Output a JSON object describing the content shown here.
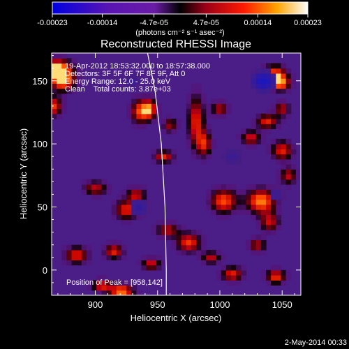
{
  "colorbar": {
    "ticks": [
      "-0.00023",
      "-0.00014",
      "-4.7e-05",
      "4.7e-05",
      "0.00014",
      "0.00023"
    ],
    "tick_values": [
      -0.00023,
      -0.00014,
      -4.7e-05,
      4.7e-05,
      0.00014,
      0.00023
    ],
    "range": [
      -0.00023,
      0.00023
    ],
    "units_text": "(photons cm⁻² s⁻¹ asec⁻²)"
  },
  "plot": {
    "title": "Reconstructed RHESSI Image",
    "annotations": [
      "19-Apr-2012 18:53:32.000 to 18:57:38.000",
      "Detectors: 3F 5F 6F 7F 8F 9F, Att 0",
      "Energy Range: 12.0 - 25.0 keV",
      "Clean    Total counts: 3.87e+03"
    ],
    "peak_text": "Position of Peak = [958,142]",
    "timestamp": "2-May-2014 00:33"
  },
  "chart_data": {
    "type": "heatmap",
    "title": "Reconstructed RHESSI Image",
    "xlabel": "Heliocentric X (arcsec)",
    "ylabel": "Heliocentric Y (arcsec)",
    "xlim": [
      865,
      1065
    ],
    "ylim": [
      -20,
      172
    ],
    "x_ticks": [
      900,
      950,
      1000,
      1050
    ],
    "x_tick_labels": [
      "900",
      "950",
      "1000",
      "1050"
    ],
    "y_ticks": [
      0,
      50,
      100,
      150
    ],
    "y_tick_labels": [
      "0",
      "50",
      "100",
      "150"
    ],
    "peak_position": [
      958,
      142
    ],
    "limb_curve": [
      [
        942,
        172
      ],
      [
        948,
        142
      ],
      [
        953,
        100
      ],
      [
        956,
        50
      ],
      [
        957,
        0
      ],
      [
        957,
        -20
      ]
    ],
    "blobs": [
      [
        869,
        160,
        12,
        8,
        1.0
      ],
      [
        874,
        150,
        10,
        8,
        0.9
      ],
      [
        866,
        130,
        8,
        8,
        0.75
      ],
      [
        921,
        -17,
        10,
        6,
        0.9
      ],
      [
        905,
        -12,
        8,
        5,
        0.7
      ],
      [
        936,
        126,
        8,
        10,
        0.75
      ],
      [
        944,
        128,
        6,
        8,
        0.7
      ],
      [
        981,
        118,
        7,
        22,
        0.7
      ],
      [
        988,
        100,
        6,
        10,
        0.6
      ],
      [
        955,
        90,
        8,
        5,
        0.7
      ],
      [
        1000,
        128,
        7,
        6,
        0.6
      ],
      [
        1044,
        155,
        10,
        8,
        0.8
      ],
      [
        1049,
        148,
        8,
        6,
        0.7
      ],
      [
        1038,
        118,
        9,
        6,
        0.7
      ],
      [
        1050,
        128,
        6,
        6,
        0.6
      ],
      [
        1003,
        55,
        11,
        10,
        0.8
      ],
      [
        1033,
        55,
        12,
        10,
        0.9
      ],
      [
        1040,
        38,
        8,
        8,
        0.6
      ],
      [
        900,
        65,
        10,
        6,
        0.6
      ],
      [
        925,
        48,
        10,
        8,
        0.7
      ],
      [
        933,
        60,
        8,
        6,
        0.6
      ],
      [
        1050,
        95,
        9,
        8,
        0.7
      ],
      [
        1055,
        75,
        7,
        7,
        0.6
      ],
      [
        958,
        32,
        9,
        6,
        0.6
      ],
      [
        975,
        22,
        10,
        8,
        0.75
      ],
      [
        885,
        12,
        10,
        7,
        0.7
      ],
      [
        915,
        15,
        8,
        6,
        0.7
      ],
      [
        945,
        5,
        8,
        5,
        0.65
      ],
      [
        1010,
        -3,
        9,
        6,
        0.7
      ],
      [
        1045,
        -5,
        8,
        6,
        0.75
      ],
      [
        1025,
        105,
        8,
        6,
        0.65
      ],
      [
        993,
        10,
        8,
        5,
        0.6
      ],
      [
        1030,
        20,
        7,
        6,
        0.6
      ],
      [
        960,
        115,
        6,
        6,
        0.55
      ]
    ],
    "dark_blobs": [
      [
        1035,
        150,
        12,
        10,
        0.9
      ],
      [
        935,
        50,
        10,
        10,
        0.6
      ],
      [
        1010,
        90,
        12,
        10,
        0.5
      ],
      [
        1045,
        60,
        10,
        8,
        0.5
      ],
      [
        930,
        150,
        10,
        8,
        0.5
      ]
    ]
  }
}
